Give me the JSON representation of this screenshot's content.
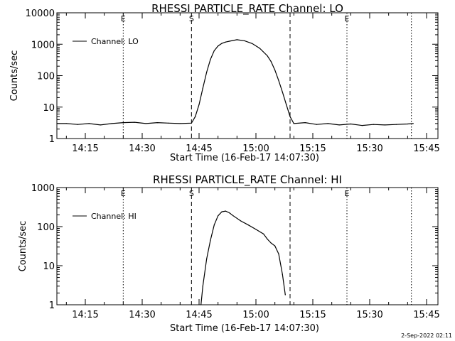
{
  "footer": {
    "timestamp": "2-Sep-2022 02:11"
  },
  "chart_data": [
    {
      "type": "line",
      "title": "RHESSI PARTICLE_RATE Channel: LO",
      "xlabel": "Start Time (16-Feb-17 14:07:30)",
      "ylabel": "Counts/sec",
      "yscale": "log",
      "ylim": [
        1,
        10000
      ],
      "xlim": [
        "14:07:30",
        "15:48:00"
      ],
      "xticks": [
        "14:15",
        "14:30",
        "14:45",
        "15:00",
        "15:15",
        "15:30",
        "15:45"
      ],
      "yticks": [
        "1",
        "10",
        "100",
        "1000",
        "10000"
      ],
      "legend": {
        "position": "top-left",
        "entries": [
          "Channel: LO"
        ]
      },
      "markers": [
        {
          "time": "14:25:00",
          "style": "dotted",
          "label": "E"
        },
        {
          "time": "14:43:00",
          "style": "dashed",
          "label": "S"
        },
        {
          "time": "15:09:00",
          "style": "dashed",
          "label": ""
        },
        {
          "time": "15:24:00",
          "style": "dotted",
          "label": "E"
        },
        {
          "time": "15:41:00",
          "style": "dotted",
          "label": ""
        }
      ],
      "series": [
        {
          "name": "Channel: LO",
          "x": [
            "14:07:30",
            "14:10:00",
            "14:13:00",
            "14:16:00",
            "14:19:00",
            "14:22:00",
            "14:25:00",
            "14:28:00",
            "14:31:00",
            "14:34:00",
            "14:37:00",
            "14:40:00",
            "14:43:00",
            "14:44:00",
            "14:45:00",
            "14:46:00",
            "14:47:00",
            "14:48:00",
            "14:49:00",
            "14:50:00",
            "14:51:00",
            "14:52:00",
            "14:53:00",
            "14:55:00",
            "14:57:00",
            "14:59:00",
            "15:01:00",
            "15:03:00",
            "15:04:00",
            "15:05:00",
            "15:06:00",
            "15:07:00",
            "15:08:00",
            "15:09:00",
            "15:10:00",
            "15:13:00",
            "15:16:00",
            "15:19:00",
            "15:22:00",
            "15:25:00",
            "15:28:00",
            "15:31:00",
            "15:34:00",
            "15:37:00",
            "15:40:00",
            "15:41:30"
          ],
          "y": [
            3,
            3,
            2.8,
            3,
            2.7,
            3,
            3.2,
            3.3,
            3,
            3.2,
            3.1,
            3,
            3.1,
            5,
            12,
            40,
            130,
            330,
            620,
            880,
            1060,
            1170,
            1250,
            1390,
            1290,
            1050,
            740,
            430,
            280,
            150,
            70,
            30,
            12,
            5,
            3,
            3.2,
            2.8,
            3,
            2.7,
            2.9,
            2.6,
            2.8,
            2.7,
            2.8,
            2.9,
            3
          ]
        }
      ]
    },
    {
      "type": "line",
      "title": "RHESSI PARTICLE_RATE Channel: HI",
      "xlabel": "Start Time (16-Feb-17 14:07:30)",
      "ylabel": "Counts/sec",
      "yscale": "log",
      "ylim": [
        1,
        1000
      ],
      "xlim": [
        "14:07:30",
        "15:48:00"
      ],
      "xticks": [
        "14:15",
        "14:30",
        "14:45",
        "15:00",
        "15:15",
        "15:30",
        "15:45"
      ],
      "yticks": [
        "1",
        "10",
        "100",
        "1000"
      ],
      "legend": {
        "position": "top-left",
        "entries": [
          "Channel: HI"
        ]
      },
      "markers": [
        {
          "time": "14:25:00",
          "style": "dotted",
          "label": "E"
        },
        {
          "time": "14:43:00",
          "style": "dashed",
          "label": "S"
        },
        {
          "time": "15:09:00",
          "style": "dashed",
          "label": ""
        },
        {
          "time": "15:24:00",
          "style": "dotted",
          "label": "E"
        },
        {
          "time": "15:41:00",
          "style": "dotted",
          "label": ""
        }
      ],
      "series": [
        {
          "name": "Channel: HI",
          "x": [
            "14:45:30",
            "14:46:00",
            "14:47:00",
            "14:48:00",
            "14:49:00",
            "14:50:00",
            "14:51:00",
            "14:52:00",
            "14:53:00",
            "14:54:00",
            "14:56:00",
            "14:58:00",
            "15:00:00",
            "15:02:00",
            "15:03:00",
            "15:04:00",
            "15:05:00",
            "15:06:00",
            "15:07:00",
            "15:07:45"
          ],
          "y": [
            1,
            3,
            15,
            45,
            110,
            190,
            240,
            250,
            225,
            190,
            140,
            110,
            85,
            65,
            48,
            38,
            32,
            20,
            6,
            1.8
          ]
        }
      ]
    }
  ]
}
